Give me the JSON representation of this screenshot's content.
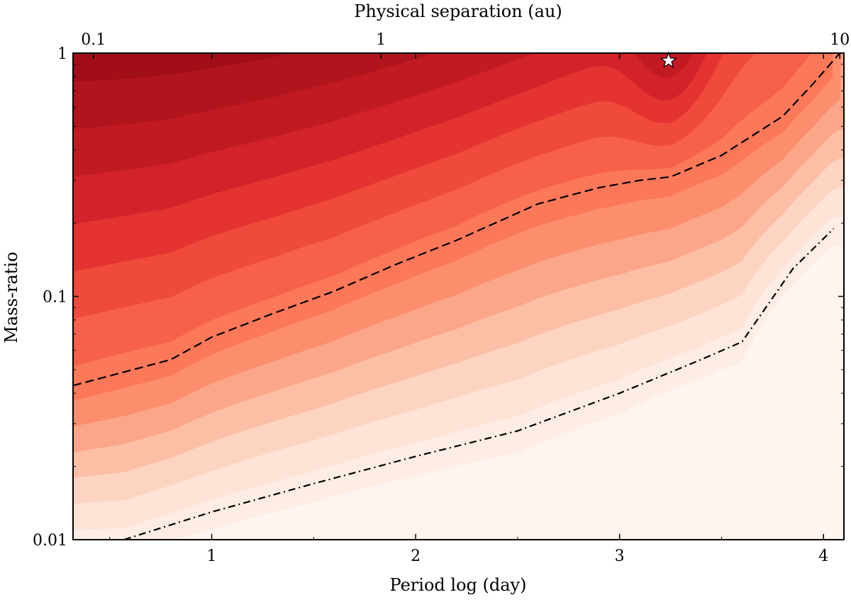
{
  "chart_data": {
    "type": "contour",
    "title": "",
    "xlabel": "Period log (day)",
    "ylabel": "Mass-ratio",
    "top_xlabel": "Physical separation (au)",
    "xlim": [
      0.32,
      4.1
    ],
    "ylim_log10": [
      -2,
      0
    ],
    "x_ticks": [
      {
        "value": 1,
        "label": "1"
      },
      {
        "value": 2,
        "label": "2"
      },
      {
        "value": 3,
        "label": "3"
      },
      {
        "value": 4,
        "label": "4"
      }
    ],
    "y_ticks": [
      {
        "value": 1,
        "label": "1"
      },
      {
        "value": 0.1,
        "label": "0.1"
      },
      {
        "value": 0.01,
        "label": "0.01"
      }
    ],
    "top_ticks": [
      {
        "value": 0.1,
        "label": "0.1",
        "logP": 0.42
      },
      {
        "value": 1,
        "label": "1",
        "logP": 1.83
      },
      {
        "value": 10,
        "label": "10",
        "logP": 4.08
      }
    ],
    "colormap": "Reds",
    "colors": [
      "#fff5f0",
      "#feede5",
      "#fee3d6",
      "#fdd4c2",
      "#fcbfa5",
      "#fca689",
      "#fc8e6e",
      "#fb7859",
      "#f7614b",
      "#ef4a3b",
      "#e43330",
      "#d2222a",
      "#c21a23",
      "#b2141d",
      "#a10e17"
    ],
    "contour_levels": [
      0.1,
      0.7,
      1.2,
      1.7,
      2.2,
      2.7,
      3.2,
      3.7,
      4.2,
      4.7,
      5.2,
      5.7,
      6.2,
      6.7,
      7.2
    ],
    "key_contours": [
      {
        "name": "dashed",
        "style": "dashed",
        "points": [
          [
            0.32,
            0.043
          ],
          [
            0.8,
            0.055
          ],
          [
            1.0,
            0.068
          ],
          [
            1.3,
            0.085
          ],
          [
            1.6,
            0.105
          ],
          [
            1.9,
            0.135
          ],
          [
            2.2,
            0.17
          ],
          [
            2.6,
            0.24
          ],
          [
            2.9,
            0.28
          ],
          [
            3.1,
            0.3
          ],
          [
            3.25,
            0.31
          ],
          [
            3.5,
            0.38
          ],
          [
            3.8,
            0.55
          ],
          [
            3.95,
            0.75
          ],
          [
            4.08,
            1.0
          ]
        ]
      },
      {
        "name": "dash-dot",
        "style": "dashdot",
        "points": [
          [
            0.57,
            0.01
          ],
          [
            1.0,
            0.013
          ],
          [
            1.5,
            0.017
          ],
          [
            2.0,
            0.022
          ],
          [
            2.5,
            0.028
          ],
          [
            3.0,
            0.04
          ],
          [
            3.4,
            0.055
          ],
          [
            3.6,
            0.065
          ],
          [
            3.85,
            0.13
          ],
          [
            4.05,
            0.19
          ]
        ]
      }
    ],
    "markers": [
      {
        "name": "star",
        "x": 3.24,
        "q": 0.93
      }
    ]
  }
}
